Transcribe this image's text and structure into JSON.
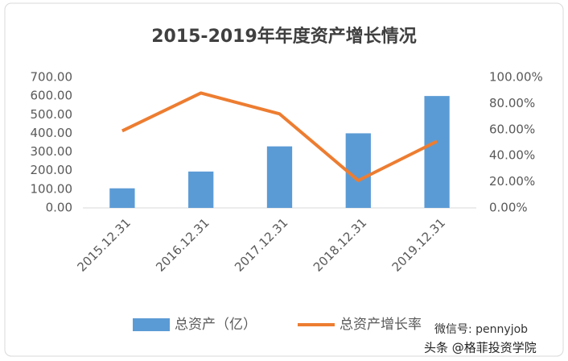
{
  "chart_data": {
    "type": "bar",
    "title": "2015-2019年年度资产增长情况",
    "categories": [
      "2015.12.31",
      "2016.12.31",
      "2017.12.31",
      "2018.12.31",
      "2019.12.31"
    ],
    "series": [
      {
        "name": "总资产（亿）",
        "color": "#5b9bd5",
        "type": "bar",
        "values": [
          105,
          195,
          330,
          400,
          600
        ]
      },
      {
        "name": "总资产增长率",
        "color": "#ed7d31",
        "type": "line",
        "axis": "y2",
        "values": [
          59,
          88,
          72,
          21,
          51
        ]
      }
    ],
    "ylim": [
      0,
      700
    ],
    "yticks": [
      {
        "value": 0,
        "label": "0.00"
      },
      {
        "value": 100,
        "label": "100.00"
      },
      {
        "value": 200,
        "label": "200.00"
      },
      {
        "value": 300,
        "label": "300.00"
      },
      {
        "value": 400,
        "label": "400.00"
      },
      {
        "value": 500,
        "label": "500.00"
      },
      {
        "value": 600,
        "label": "600.00"
      },
      {
        "value": 700,
        "label": "700.00"
      }
    ],
    "y2lim": [
      0,
      100
    ],
    "y2ticks": [
      {
        "value": 0,
        "label": "0.00%"
      },
      {
        "value": 20,
        "label": "20.00%"
      },
      {
        "value": 40,
        "label": "40.00%"
      },
      {
        "value": 60,
        "label": "60.00%"
      },
      {
        "value": 80,
        "label": "80.00%"
      },
      {
        "value": 100,
        "label": "100.00%"
      }
    ],
    "annotations": [
      "微信号: pennyjob",
      "头条 @格菲投资学院"
    ]
  }
}
